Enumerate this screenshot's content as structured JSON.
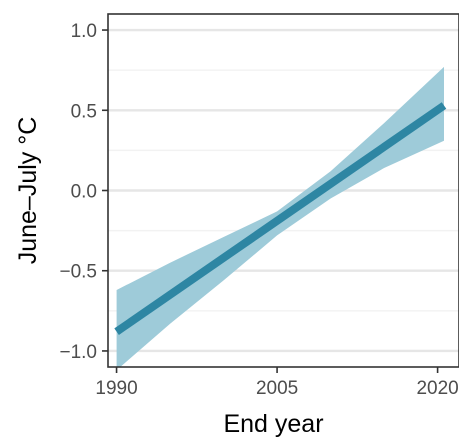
{
  "chart_data": {
    "type": "line",
    "title": "",
    "xlabel": "End year",
    "ylabel": "June–July °C",
    "xlim": [
      1989.2,
      2022
    ],
    "ylim": [
      -1.1,
      1.1
    ],
    "x_ticks": [
      1990,
      2005,
      2020
    ],
    "x_tick_labels": [
      "1990",
      "2005",
      "2020"
    ],
    "y_ticks": [
      -1.0,
      -0.5,
      0.0,
      0.5,
      1.0
    ],
    "y_tick_labels": [
      "−1.0",
      "−0.5",
      "0.0",
      "0.5",
      "1.0"
    ],
    "grid": true,
    "legend": "none",
    "series": [
      {
        "x": [
          1990,
          2020.6
        ],
        "y": [
          -0.88,
          0.53
        ],
        "lower": [
          -1.12,
          0.31
        ],
        "upper": [
          -0.62,
          0.77
        ],
        "band_x": [
          1990,
          1995,
          2000,
          2005,
          2010,
          2015,
          2020.6
        ],
        "band_lower": [
          -1.12,
          -0.83,
          -0.56,
          -0.28,
          -0.05,
          0.14,
          0.31
        ],
        "band_upper": [
          -0.62,
          -0.45,
          -0.29,
          -0.13,
          0.12,
          0.42,
          0.77
        ],
        "line_color": "#2e86a3",
        "band_color": "#9ecbd9"
      }
    ]
  }
}
